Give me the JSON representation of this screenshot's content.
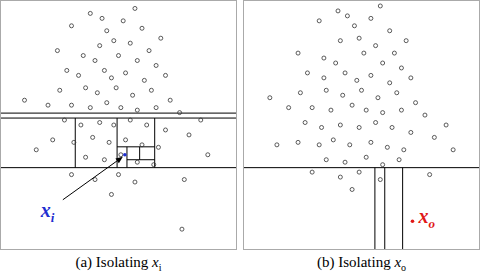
{
  "chart_data": [
    {
      "type": "scatter",
      "xlim": [
        0,
        100
      ],
      "ylim": [
        0,
        100
      ],
      "tick_labels": false,
      "caption": {
        "prefix": "(a) Isolating ",
        "symbol": "x",
        "subscript": "i"
      },
      "points": [
        [
          30,
          90
        ],
        [
          38,
          95
        ],
        [
          45,
          88
        ],
        [
          52,
          92
        ],
        [
          60,
          89
        ],
        [
          42,
          82
        ],
        [
          48,
          84
        ],
        [
          55,
          83
        ],
        [
          63,
          80
        ],
        [
          35,
          78
        ],
        [
          40,
          76
        ],
        [
          50,
          78
        ],
        [
          58,
          76
        ],
        [
          66,
          74
        ],
        [
          28,
          72
        ],
        [
          33,
          70
        ],
        [
          44,
          72
        ],
        [
          47,
          69
        ],
        [
          53,
          71
        ],
        [
          61,
          68
        ],
        [
          70,
          70
        ],
        [
          25,
          64
        ],
        [
          36,
          65
        ],
        [
          41,
          63
        ],
        [
          49,
          65
        ],
        [
          56,
          62
        ],
        [
          64,
          64
        ],
        [
          72,
          60
        ],
        [
          20,
          58
        ],
        [
          30,
          58
        ],
        [
          38,
          57
        ],
        [
          45,
          59
        ],
        [
          51,
          57
        ],
        [
          58,
          56
        ],
        [
          66,
          57
        ],
        [
          76,
          55
        ],
        [
          27,
          52
        ],
        [
          34,
          50
        ],
        [
          42,
          51
        ],
        [
          48,
          50
        ],
        [
          55,
          52
        ],
        [
          62,
          50
        ],
        [
          70,
          48
        ],
        [
          80,
          46
        ],
        [
          22,
          44
        ],
        [
          31,
          43
        ],
        [
          39,
          45
        ],
        [
          46,
          43
        ],
        [
          53,
          44
        ],
        [
          60,
          42
        ],
        [
          67,
          41
        ],
        [
          36,
          37
        ],
        [
          44,
          36
        ],
        [
          51,
          38
        ],
        [
          58,
          35
        ],
        [
          65,
          34
        ],
        [
          40,
          28
        ],
        [
          50,
          30
        ],
        [
          57,
          27
        ],
        [
          47,
          22
        ],
        [
          15,
          40
        ],
        [
          85,
          52
        ],
        [
          88,
          38
        ],
        [
          10,
          60
        ],
        [
          78,
          28
        ],
        [
          30,
          30
        ],
        [
          77,
          8
        ],
        [
          43,
          93
        ],
        [
          57,
          97
        ],
        [
          68,
          85
        ],
        [
          24,
          80
        ]
      ],
      "highlight": {
        "x": 52.7,
        "y": 38,
        "symbol": "x",
        "subscript": "i",
        "color": "#1f2fd0"
      },
      "partitions": [
        [
          0,
          54.8,
          100,
          54.8
        ],
        [
          0,
          52.8,
          100,
          52.8
        ],
        [
          0,
          32.8,
          100,
          32.8
        ],
        [
          31.6,
          52.8,
          31.6,
          32.8
        ],
        [
          65.4,
          52.8,
          65.4,
          32.8
        ],
        [
          49.4,
          52.8,
          49.4,
          32.8
        ],
        [
          49.4,
          41.2,
          65.4,
          41.2
        ],
        [
          53.6,
          41.2,
          53.6,
          32.8
        ],
        [
          53.6,
          36,
          65.4,
          36
        ],
        [
          59,
          41.2,
          59,
          36
        ]
      ]
    },
    {
      "type": "scatter",
      "xlim": [
        0,
        100
      ],
      "ylim": [
        0,
        100
      ],
      "tick_labels": false,
      "caption": {
        "prefix": "(b) Isolating ",
        "symbol": "x",
        "subscript": "o"
      },
      "points": [
        [
          32,
          92
        ],
        [
          40,
          96
        ],
        [
          47,
          90
        ],
        [
          54,
          93
        ],
        [
          62,
          88
        ],
        [
          41,
          84
        ],
        [
          49,
          85
        ],
        [
          56,
          82
        ],
        [
          64,
          79
        ],
        [
          34,
          77
        ],
        [
          39,
          75
        ],
        [
          51,
          79
        ],
        [
          59,
          75
        ],
        [
          67,
          73
        ],
        [
          27,
          71
        ],
        [
          34,
          69
        ],
        [
          43,
          71
        ],
        [
          48,
          68
        ],
        [
          54,
          70
        ],
        [
          62,
          67
        ],
        [
          71,
          69
        ],
        [
          24,
          63
        ],
        [
          35,
          64
        ],
        [
          42,
          62
        ],
        [
          50,
          64
        ],
        [
          57,
          61
        ],
        [
          65,
          63
        ],
        [
          73,
          59
        ],
        [
          19,
          57
        ],
        [
          29,
          57
        ],
        [
          37,
          56
        ],
        [
          46,
          58
        ],
        [
          52,
          56
        ],
        [
          59,
          55
        ],
        [
          67,
          56
        ],
        [
          77,
          54
        ],
        [
          26,
          51
        ],
        [
          33,
          49
        ],
        [
          41,
          50
        ],
        [
          49,
          49
        ],
        [
          56,
          51
        ],
        [
          63,
          49
        ],
        [
          71,
          47
        ],
        [
          81,
          45
        ],
        [
          23,
          43
        ],
        [
          32,
          42
        ],
        [
          38,
          44
        ],
        [
          45,
          42
        ],
        [
          54,
          43
        ],
        [
          61,
          41
        ],
        [
          68,
          40
        ],
        [
          35,
          36
        ],
        [
          43,
          35
        ],
        [
          52,
          37
        ],
        [
          59,
          34
        ],
        [
          66,
          36
        ],
        [
          41,
          29
        ],
        [
          49,
          31
        ],
        [
          58,
          28
        ],
        [
          46,
          24
        ],
        [
          14,
          42
        ],
        [
          86,
          50
        ],
        [
          89,
          40
        ],
        [
          11,
          61
        ],
        [
          79,
          30
        ],
        [
          29,
          31
        ],
        [
          44,
          94
        ],
        [
          58,
          98
        ],
        [
          69,
          84
        ],
        [
          23,
          79
        ]
      ],
      "highlight": {
        "x": 71.7,
        "y": 11.2,
        "symbol": "x",
        "subscript": "o",
        "color": "#e01818"
      },
      "partitions": [
        [
          0,
          32.8,
          100,
          32.8
        ],
        [
          55.7,
          32.8,
          55.7,
          0
        ],
        [
          59.9,
          32.8,
          59.9,
          0
        ],
        [
          67.5,
          32.8,
          67.5,
          0
        ]
      ]
    }
  ]
}
